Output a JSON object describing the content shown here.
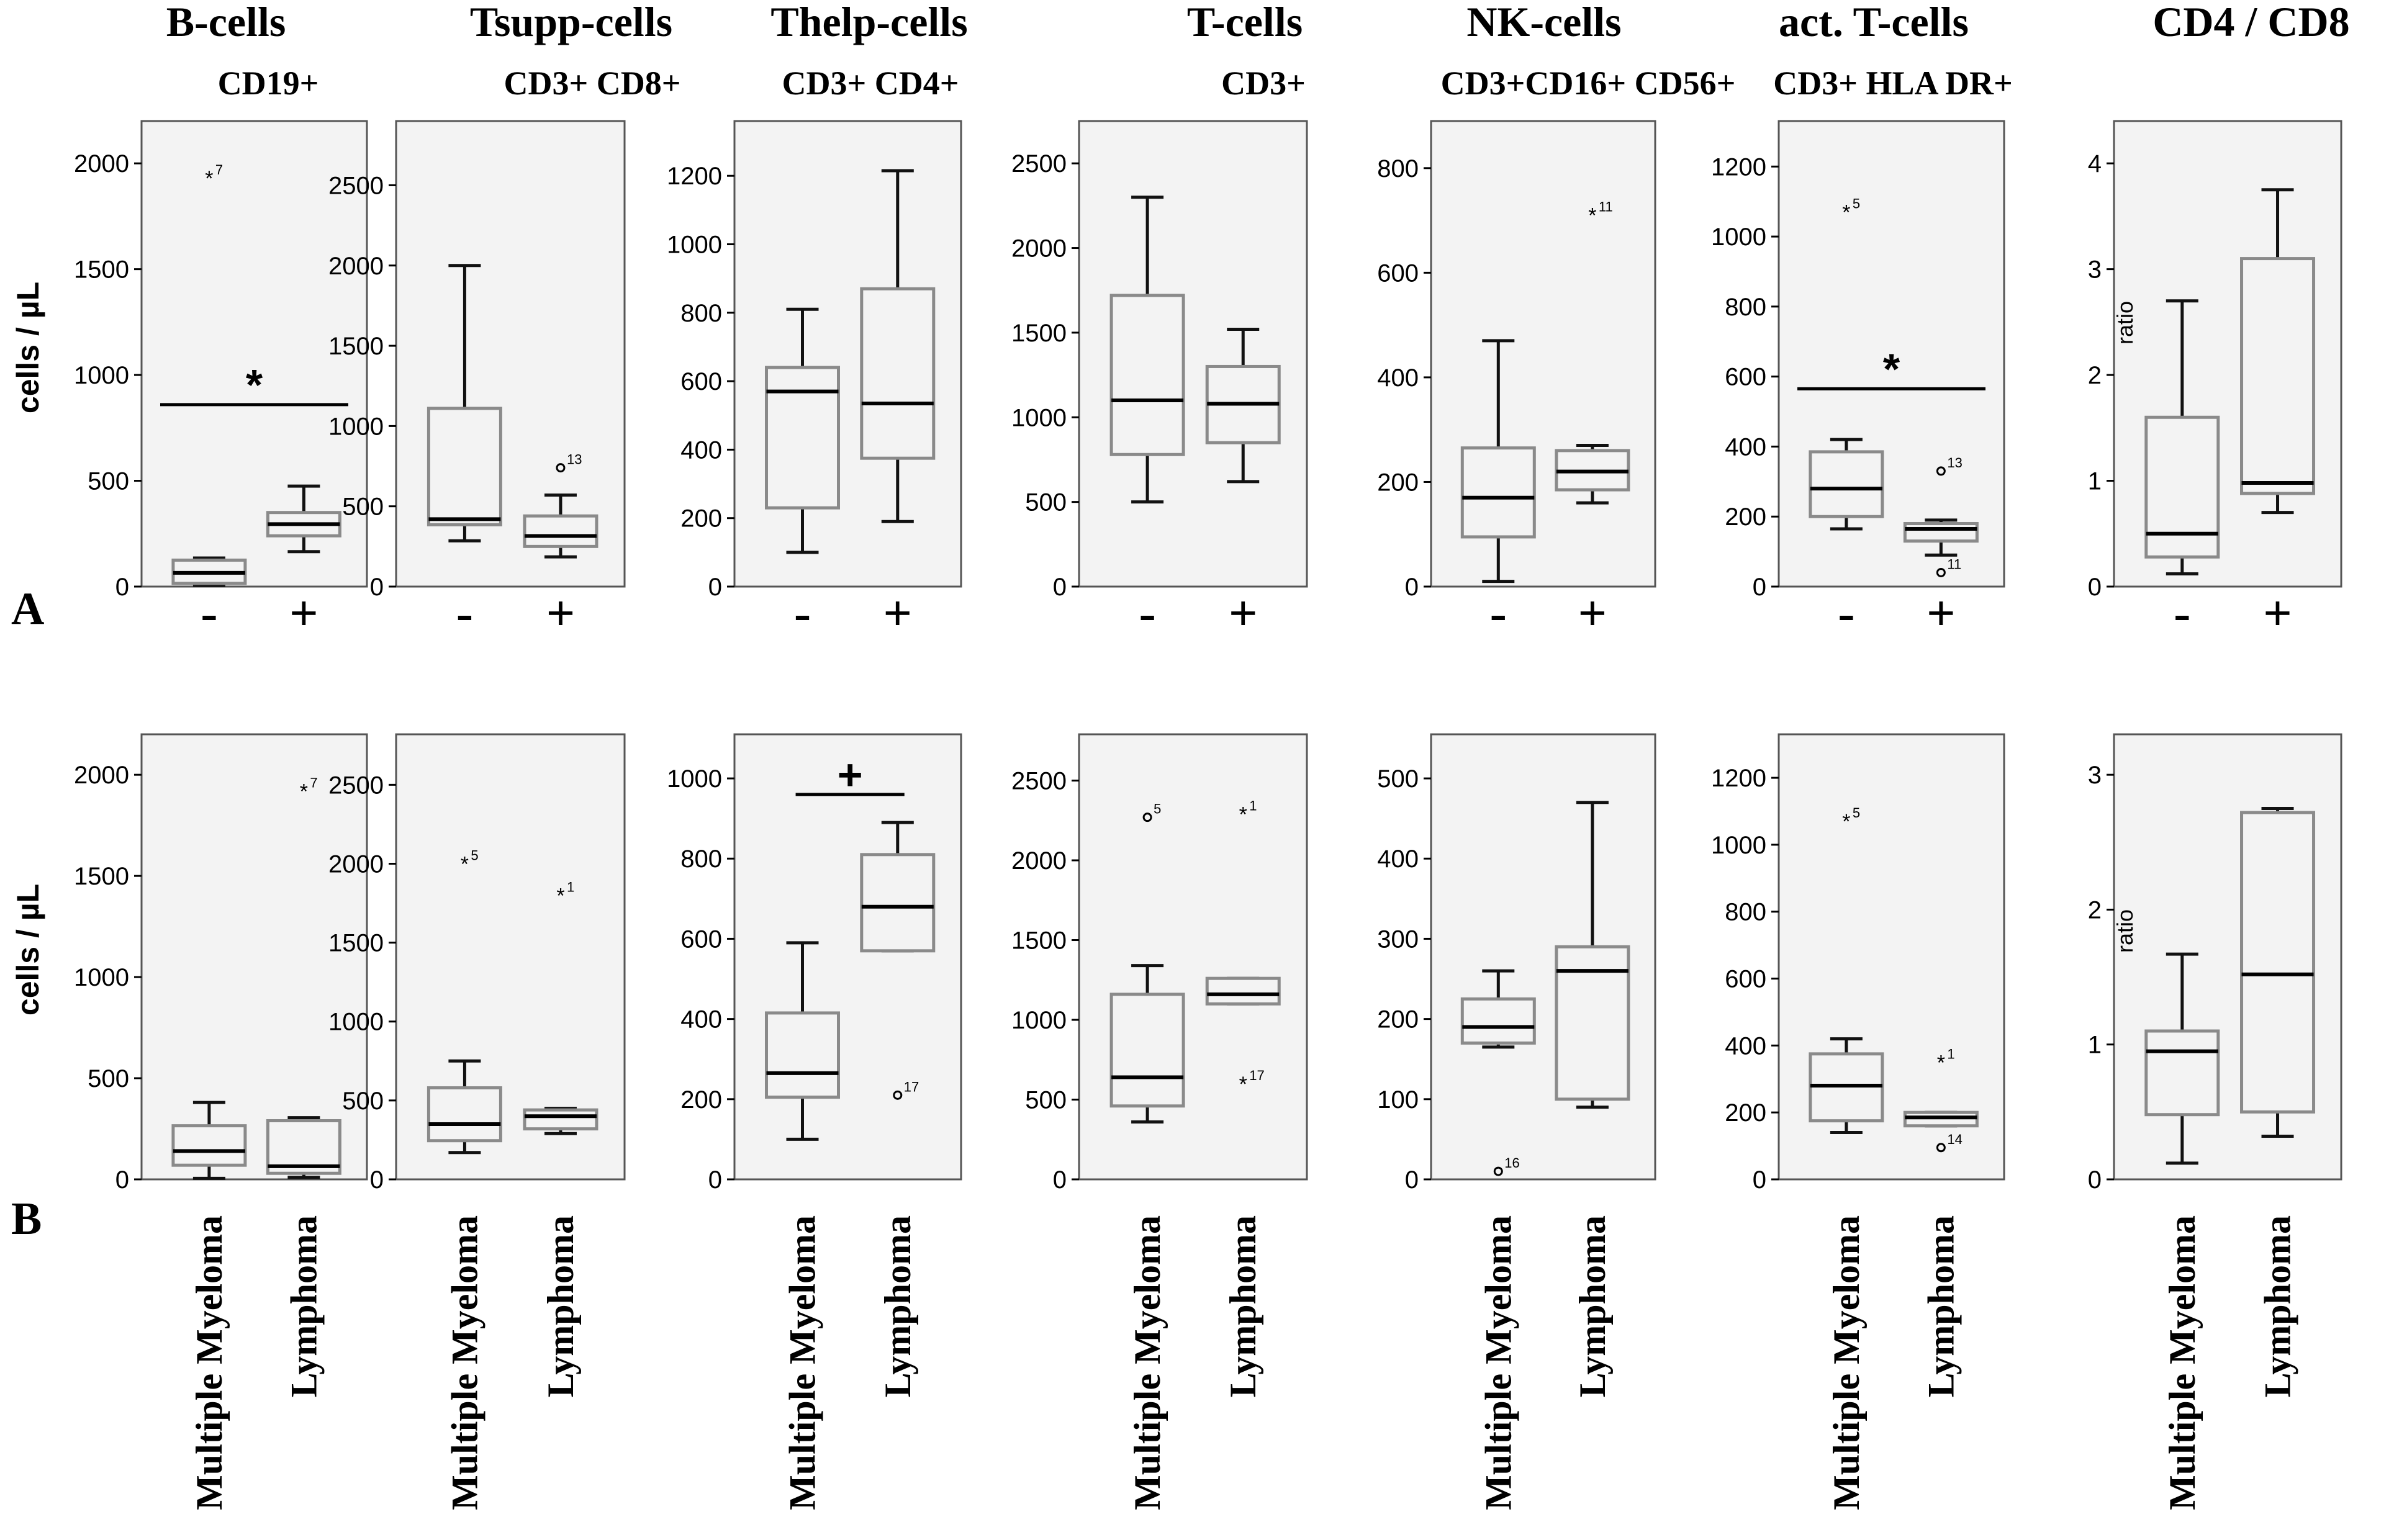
{
  "figure": {
    "panel_labels": [
      "A",
      "B"
    ],
    "ylabel": "cells / µL",
    "ratio_label": "ratio"
  },
  "chart_data": [
    {
      "type": "box",
      "row": "A",
      "title": "B-cells",
      "subtitle": "CD19+",
      "ylabel": "cells / µL",
      "ylim": [
        0,
        2200
      ],
      "yticks": [
        0,
        500,
        1000,
        1500,
        2000
      ],
      "categories": [
        "-",
        "+"
      ],
      "boxes": [
        {
          "whisker_low": 5,
          "q1": 15,
          "median": 65,
          "q3": 125,
          "whisker_high": 135
        },
        {
          "whisker_low": 165,
          "q1": 240,
          "median": 295,
          "q3": 350,
          "whisker_high": 475
        }
      ],
      "outliers": [
        {
          "group": 0,
          "value": 1930,
          "marker": "star",
          "label": "7"
        }
      ],
      "significance": [
        {
          "symbol": "*",
          "y": 860
        }
      ]
    },
    {
      "type": "box",
      "row": "A",
      "title": "Tsupp-cells",
      "subtitle": "CD3+ CD8+",
      "ylim": [
        0,
        2900
      ],
      "yticks": [
        0,
        500,
        1000,
        1500,
        2000,
        2500
      ],
      "categories": [
        "-",
        "+"
      ],
      "boxes": [
        {
          "whisker_low": 285,
          "q1": 385,
          "median": 420,
          "q3": 1110,
          "whisker_high": 2000
        },
        {
          "whisker_low": 185,
          "q1": 250,
          "median": 315,
          "q3": 440,
          "whisker_high": 570
        }
      ],
      "outliers": [
        {
          "group": 1,
          "value": 740,
          "marker": "circle",
          "label": "13"
        }
      ],
      "significance": []
    },
    {
      "type": "box",
      "row": "A",
      "title": "Thelp-cells",
      "subtitle": "CD3+ CD4+",
      "ylim": [
        0,
        1360
      ],
      "yticks": [
        0,
        200,
        400,
        600,
        800,
        1000,
        1200
      ],
      "categories": [
        "-",
        "+"
      ],
      "boxes": [
        {
          "whisker_low": 100,
          "q1": 230,
          "median": 570,
          "q3": 640,
          "whisker_high": 810
        },
        {
          "whisker_low": 190,
          "q1": 375,
          "median": 535,
          "q3": 870,
          "whisker_high": 1215
        }
      ],
      "outliers": [],
      "significance": []
    },
    {
      "type": "box",
      "row": "A",
      "title": "T-cells",
      "subtitle": "CD3+",
      "ylim": [
        0,
        2750
      ],
      "yticks": [
        0,
        500,
        1000,
        1500,
        2000,
        2500
      ],
      "categories": [
        "-",
        "+"
      ],
      "boxes": [
        {
          "whisker_low": 500,
          "q1": 780,
          "median": 1100,
          "q3": 1720,
          "whisker_high": 2300
        },
        {
          "whisker_low": 620,
          "q1": 850,
          "median": 1080,
          "q3": 1300,
          "whisker_high": 1520
        }
      ],
      "outliers": [],
      "significance": []
    },
    {
      "type": "box",
      "row": "A",
      "title": "NK-cells",
      "subtitle": "CD3+CD16+ CD56+",
      "ylim": [
        0,
        890
      ],
      "yticks": [
        0,
        200,
        400,
        600,
        800
      ],
      "categories": [
        "-",
        "+"
      ],
      "boxes": [
        {
          "whisker_low": 10,
          "q1": 95,
          "median": 170,
          "q3": 265,
          "whisker_high": 470
        },
        {
          "whisker_low": 160,
          "q1": 185,
          "median": 220,
          "q3": 260,
          "whisker_high": 270
        }
      ],
      "outliers": [
        {
          "group": 1,
          "value": 710,
          "marker": "star",
          "label": "11"
        }
      ],
      "significance": []
    },
    {
      "type": "box",
      "row": "A",
      "title": "act. T-cells",
      "subtitle": "CD3+ HLA DR+",
      "ylim": [
        0,
        1330
      ],
      "yticks": [
        0,
        200,
        400,
        600,
        800,
        1000,
        1200
      ],
      "categories": [
        "-",
        "+"
      ],
      "boxes": [
        {
          "whisker_low": 165,
          "q1": 200,
          "median": 280,
          "q3": 385,
          "whisker_high": 420
        },
        {
          "whisker_low": 90,
          "q1": 130,
          "median": 165,
          "q3": 180,
          "whisker_high": 190
        }
      ],
      "outliers": [
        {
          "group": 0,
          "value": 1070,
          "marker": "star",
          "label": "5"
        },
        {
          "group": 1,
          "value": 330,
          "marker": "circle",
          "label": "13"
        },
        {
          "group": 1,
          "value": 40,
          "marker": "circle",
          "label": "11"
        }
      ],
      "significance": [
        {
          "symbol": "*",
          "y": 565
        }
      ]
    },
    {
      "type": "box",
      "row": "A",
      "title": "CD4 / CD8",
      "subtitle": "",
      "ylabel": "ratio",
      "ylim": [
        0,
        4.4
      ],
      "yticks": [
        0,
        1,
        2,
        3,
        4
      ],
      "categories": [
        "-",
        "+"
      ],
      "boxes": [
        {
          "whisker_low": 0.12,
          "q1": 0.28,
          "median": 0.5,
          "q3": 1.6,
          "whisker_high": 2.7
        },
        {
          "whisker_low": 0.7,
          "q1": 0.88,
          "median": 0.98,
          "q3": 3.1,
          "whisker_high": 3.75
        }
      ],
      "outliers": [],
      "significance": []
    },
    {
      "type": "box",
      "row": "B",
      "title": "B-cells",
      "ylabel": "cells / µL",
      "ylim": [
        0,
        2200
      ],
      "yticks": [
        0,
        500,
        1000,
        1500,
        2000
      ],
      "categories": [
        "Multiple Myeloma",
        "Lymphoma"
      ],
      "boxes": [
        {
          "whisker_low": 5,
          "q1": 70,
          "median": 140,
          "q3": 265,
          "whisker_high": 380
        },
        {
          "whisker_low": 10,
          "q1": 30,
          "median": 65,
          "q3": 290,
          "whisker_high": 305
        }
      ],
      "outliers": [
        {
          "group": 1,
          "value": 1920,
          "marker": "star",
          "label": "7"
        }
      ],
      "significance": []
    },
    {
      "type": "box",
      "row": "B",
      "title": "Tsupp-cells",
      "ylim": [
        0,
        2820
      ],
      "yticks": [
        0,
        500,
        1000,
        1500,
        2000,
        2500
      ],
      "categories": [
        "Multiple Myeloma",
        "Lymphoma"
      ],
      "boxes": [
        {
          "whisker_low": 170,
          "q1": 245,
          "median": 350,
          "q3": 580,
          "whisker_high": 750
        },
        {
          "whisker_low": 290,
          "q1": 320,
          "median": 400,
          "q3": 440,
          "whisker_high": 450
        }
      ],
      "outliers": [
        {
          "group": 0,
          "value": 2000,
          "marker": "star",
          "label": "5"
        },
        {
          "group": 1,
          "value": 1800,
          "marker": "star",
          "label": "1"
        }
      ],
      "significance": []
    },
    {
      "type": "box",
      "row": "B",
      "title": "Thelp-cells",
      "ylim": [
        0,
        1110
      ],
      "yticks": [
        0,
        200,
        400,
        600,
        800,
        1000
      ],
      "categories": [
        "Multiple Myeloma",
        "Lymphoma"
      ],
      "boxes": [
        {
          "whisker_low": 100,
          "q1": 205,
          "median": 265,
          "q3": 415,
          "whisker_high": 590
        },
        {
          "whisker_low": 570,
          "q1": 570,
          "median": 680,
          "q3": 810,
          "whisker_high": 890
        }
      ],
      "outliers": [
        {
          "group": 1,
          "value": 210,
          "marker": "circle",
          "label": "17"
        }
      ],
      "significance": [
        {
          "symbol": "+",
          "y": 960
        }
      ]
    },
    {
      "type": "box",
      "row": "B",
      "title": "T-cells",
      "ylim": [
        0,
        2790
      ],
      "yticks": [
        0,
        500,
        1000,
        1500,
        2000,
        2500
      ],
      "categories": [
        "Multiple Myeloma",
        "Lymphoma"
      ],
      "boxes": [
        {
          "whisker_low": 360,
          "q1": 460,
          "median": 640,
          "q3": 1160,
          "whisker_high": 1340
        },
        {
          "whisker_low": 1100,
          "q1": 1100,
          "median": 1160,
          "q3": 1260,
          "whisker_high": 1260
        }
      ],
      "outliers": [
        {
          "group": 0,
          "value": 2270,
          "marker": "circle",
          "label": "5"
        },
        {
          "group": 1,
          "value": 2290,
          "marker": "star",
          "label": "1"
        },
        {
          "group": 1,
          "value": 600,
          "marker": "star",
          "label": "17"
        }
      ],
      "significance": []
    },
    {
      "type": "box",
      "row": "B",
      "title": "NK-cells",
      "ylim": [
        0,
        555
      ],
      "yticks": [
        0,
        100,
        200,
        300,
        400,
        500
      ],
      "categories": [
        "Multiple Myeloma",
        "Lymphoma"
      ],
      "boxes": [
        {
          "whisker_low": 165,
          "q1": 170,
          "median": 190,
          "q3": 225,
          "whisker_high": 260
        },
        {
          "whisker_low": 90,
          "q1": 100,
          "median": 260,
          "q3": 290,
          "whisker_high": 470
        }
      ],
      "outliers": [
        {
          "group": 0,
          "value": 10,
          "marker": "circle",
          "label": "16"
        }
      ],
      "significance": []
    },
    {
      "type": "box",
      "row": "B",
      "title": "act. T-cells",
      "ylim": [
        0,
        1330
      ],
      "yticks": [
        0,
        200,
        400,
        600,
        800,
        1000,
        1200
      ],
      "categories": [
        "Multiple Myeloma",
        "Lymphoma"
      ],
      "boxes": [
        {
          "whisker_low": 140,
          "q1": 175,
          "median": 280,
          "q3": 375,
          "whisker_high": 420
        },
        {
          "whisker_low": 160,
          "q1": 160,
          "median": 185,
          "q3": 200,
          "whisker_high": 200
        }
      ],
      "outliers": [
        {
          "group": 0,
          "value": 1070,
          "marker": "star",
          "label": "5"
        },
        {
          "group": 1,
          "value": 350,
          "marker": "star",
          "label": "1"
        },
        {
          "group": 1,
          "value": 95,
          "marker": "circle",
          "label": "14"
        }
      ],
      "significance": []
    },
    {
      "type": "box",
      "row": "B",
      "title": "CD4 / CD8",
      "ylabel": "ratio",
      "ylim": [
        0,
        3.3
      ],
      "yticks": [
        0,
        1,
        2,
        3
      ],
      "categories": [
        "Multiple Myeloma",
        "Lymphoma"
      ],
      "boxes": [
        {
          "whisker_low": 0.12,
          "q1": 0.48,
          "median": 0.95,
          "q3": 1.1,
          "whisker_high": 1.67
        },
        {
          "whisker_low": 0.32,
          "q1": 0.5,
          "median": 1.52,
          "q3": 2.72,
          "whisker_high": 2.75
        }
      ],
      "outliers": [],
      "significance": []
    }
  ]
}
